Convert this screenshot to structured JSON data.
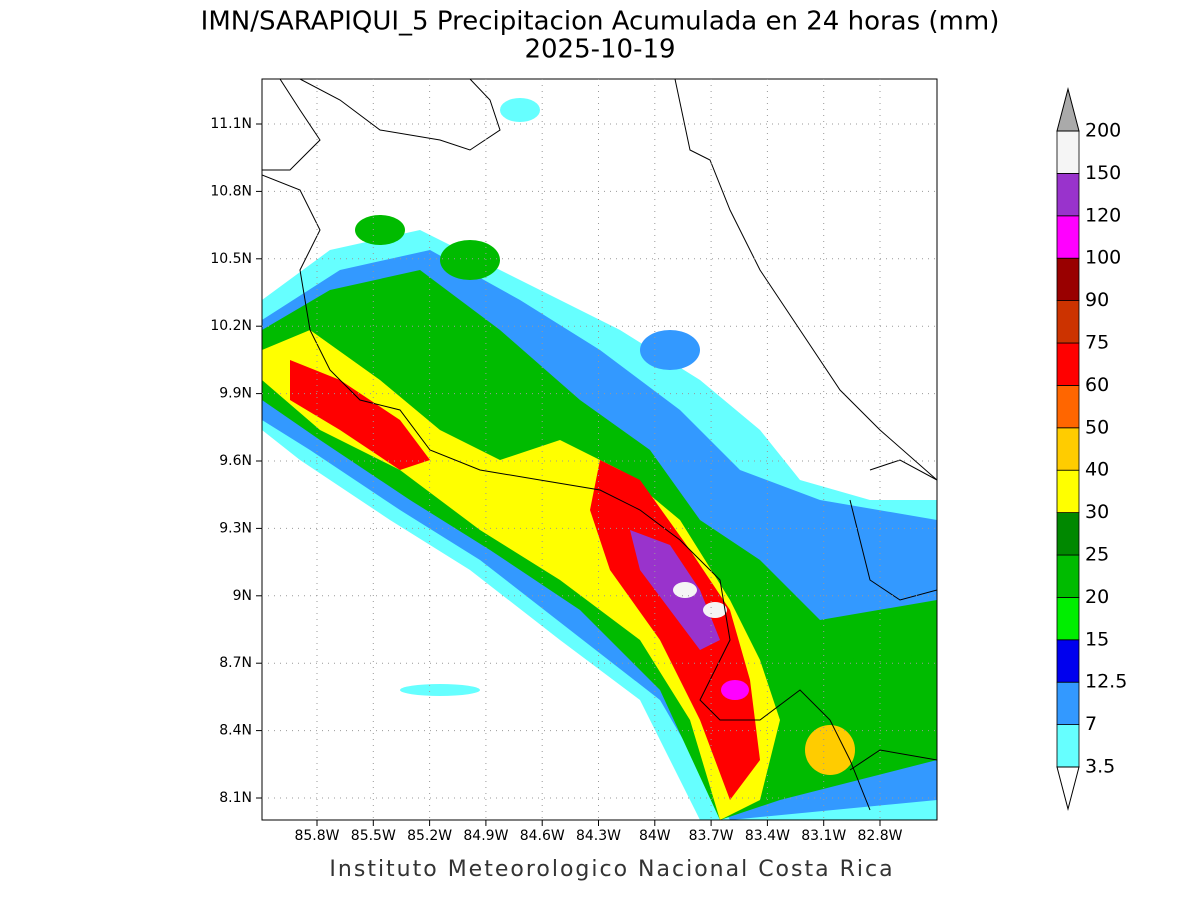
{
  "header": {
    "title": "IMN/SARAPIQUI_5 Precipitacion Acumulada en 24 horas (mm)",
    "date": "2025-10-19"
  },
  "map": {
    "lat_labels": [
      "11.1N",
      "10.8N",
      "10.5N",
      "10.2N",
      "9.9N",
      "9.6N",
      "9.3N",
      "9N",
      "8.7N",
      "8.4N",
      "8.1N"
    ],
    "lon_labels": [
      "85.8W",
      "85.5W",
      "85.2W",
      "84.9W",
      "84.6W",
      "84.3W",
      "84W",
      "83.7W",
      "83.4W",
      "83.1W",
      "82.8W"
    ]
  },
  "legend": {
    "levels": [
      3.5,
      7,
      12.5,
      15,
      20,
      25,
      30,
      40,
      50,
      60,
      75,
      90,
      100,
      120,
      150,
      200
    ],
    "colors": [
      "#66ffff",
      "#3399ff",
      "#0000ee",
      "#00ee00",
      "#00bb00",
      "#008800",
      "#ffff00",
      "#ffcc00",
      "#ff6600",
      "#ff0000",
      "#cc3300",
      "#990000",
      "#ff00ff",
      "#9933cc",
      "#f5f5f5"
    ],
    "under_color": "#ffffff",
    "over_color": "#aaaaaa"
  },
  "footer": "Instituto Meteorologico Nacional Costa Rica"
}
